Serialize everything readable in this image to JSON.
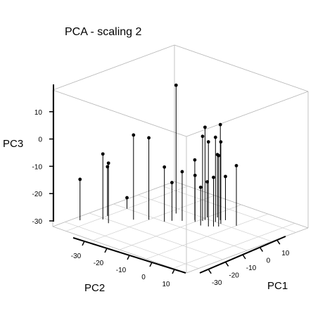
{
  "chart_data": {
    "type": "scatter",
    "subtype": "3d-scatter-with-drop-lines",
    "title": "PCA - scaling 2",
    "xlabel": "PC1",
    "ylabel": "PC2",
    "zlabel": "PC3",
    "x_ticks": [
      "-30",
      "-20",
      "-10",
      "0",
      "10"
    ],
    "y_ticks": [
      "-30",
      "-20",
      "-10",
      "0",
      "10"
    ],
    "z_ticks": [
      "-30",
      "-20",
      "-10",
      "0",
      "10"
    ],
    "xlim": [
      -35,
      15
    ],
    "ylim": [
      -35,
      15
    ],
    "zlim": [
      -30,
      20
    ],
    "grid": true,
    "legend": "none",
    "points": [
      {
        "x": -3,
        "y": -18,
        "z": 17
      },
      {
        "x": 2,
        "y": 0,
        "z": -8
      },
      {
        "x": 0,
        "y": -4,
        "z": 0
      },
      {
        "x": 2,
        "y": -6,
        "z": 5
      },
      {
        "x": 0,
        "y": -6,
        "z": 1
      },
      {
        "x": 3,
        "y": -8,
        "z": -7
      },
      {
        "x": -2,
        "y": -3,
        "z": -4
      },
      {
        "x": -4,
        "y": -5,
        "z": 1
      },
      {
        "x": -1,
        "y": -9,
        "z": 4
      },
      {
        "x": -3,
        "y": -4,
        "z": -12
      },
      {
        "x": -2,
        "y": -9,
        "z": 1
      },
      {
        "x": -5,
        "y": -7,
        "z": -16
      },
      {
        "x": -4,
        "y": -10,
        "z": -13
      },
      {
        "x": 3,
        "y": -5,
        "z": -14
      },
      {
        "x": -3,
        "y": -11,
        "z": -8
      },
      {
        "x": -10,
        "y": -16,
        "z": -10
      },
      {
        "x": 1,
        "y": -10,
        "z": -17
      },
      {
        "x": -6,
        "y": -13,
        "z": -12
      },
      {
        "x": -8,
        "y": -15,
        "z": -16
      },
      {
        "x": -12,
        "y": -20,
        "z": 0
      },
      {
        "x": -15,
        "y": -23,
        "z": 1
      },
      {
        "x": -22,
        "y": -26,
        "z": -8
      },
      {
        "x": -18,
        "y": -30,
        "z": -12
      },
      {
        "x": -21,
        "y": -29,
        "z": -6
      },
      {
        "x": -26,
        "y": -33,
        "z": -15
      },
      {
        "x": -10,
        "y": -30,
        "z": -26
      }
    ]
  }
}
